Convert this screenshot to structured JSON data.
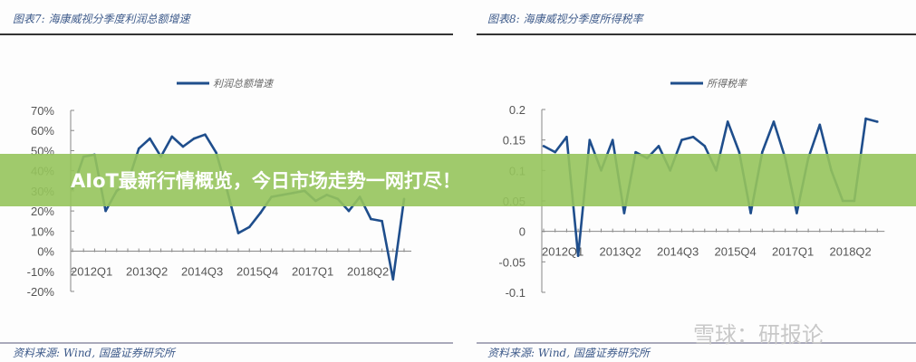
{
  "banner": {
    "text": "AIoT最新行情概览，今日市场走势一网打尽！",
    "color": "#96c45c"
  },
  "watermark": "雪球：研报论",
  "chart_data": [
    {
      "type": "line",
      "caption": "图表7: 海康威视分季度利润总额增速",
      "source": "资料来源: Wind, 国盛证券研究所",
      "legend": "利润总额增速",
      "legend_placement": "top",
      "color": "#1f4e8c",
      "x_tick_labels": [
        "2012Q1",
        "2013Q2",
        "2014Q3",
        "2015Q4",
        "2017Q1",
        "2018Q2"
      ],
      "y_tick_labels": [
        "70%",
        "60%",
        "50%",
        "40%",
        "30%",
        "20%",
        "10%",
        "0%",
        "-10%",
        "-20%"
      ],
      "ylim": [
        -0.2,
        0.7
      ],
      "values": [
        0.31,
        0.47,
        0.48,
        0.2,
        0.3,
        0.34,
        0.51,
        0.56,
        0.47,
        0.57,
        0.52,
        0.56,
        0.58,
        0.49,
        0.3,
        0.09,
        0.12,
        0.19,
        0.27,
        0.28,
        0.29,
        0.3,
        0.25,
        0.28,
        0.26,
        0.2,
        0.27,
        0.16,
        0.15,
        -0.14,
        0.26
      ]
    },
    {
      "type": "line",
      "caption": "图表8: 海康威视分季度所得税率",
      "source": "资料来源: Wind, 国盛证券研究所",
      "legend": "所得税率",
      "legend_placement": "top",
      "color": "#1f4e8c",
      "x_tick_labels": [
        "2012Q1",
        "2013Q2",
        "2014Q3",
        "2015Q4",
        "2017Q1",
        "2018Q2"
      ],
      "y_tick_labels": [
        "0.2",
        "0.15",
        "0.1",
        "0.05",
        "0",
        "-0.05",
        "-0.1"
      ],
      "ylim": [
        -0.1,
        0.2
      ],
      "values": [
        0.14,
        0.13,
        0.155,
        -0.04,
        0.15,
        0.1,
        0.15,
        0.03,
        0.13,
        0.12,
        0.14,
        0.1,
        0.15,
        0.155,
        0.14,
        0.1,
        0.18,
        0.13,
        0.03,
        0.13,
        0.18,
        0.12,
        0.03,
        0.12,
        0.175,
        0.1,
        0.05,
        0.05,
        0.185,
        0.18
      ]
    }
  ]
}
